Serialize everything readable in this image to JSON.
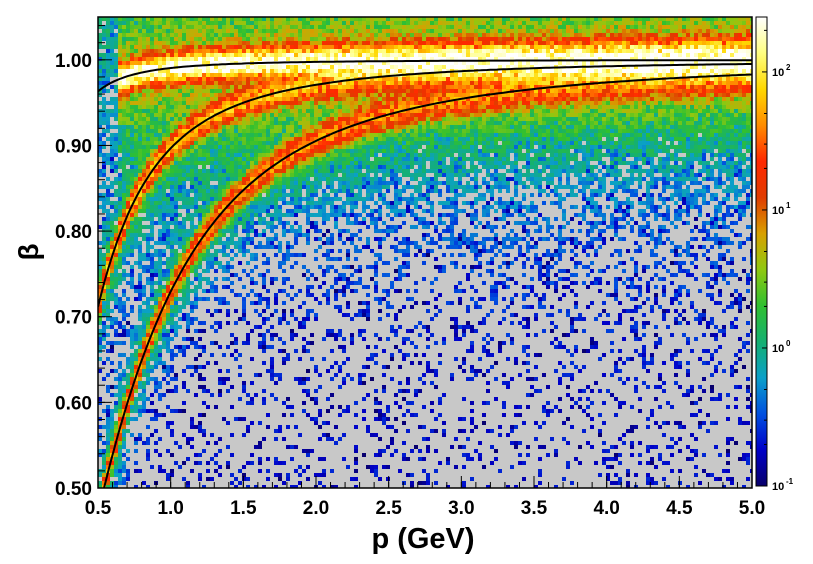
{
  "chart_data": {
    "type": "heatmap",
    "xlabel": "p (GeV)",
    "ylabel": "β",
    "xlim": [
      0.5,
      5.0
    ],
    "ylim": [
      0.5,
      1.05
    ],
    "x_ticks": [
      "0.5",
      "1.0",
      "1.5",
      "2.0",
      "2.5",
      "3.0",
      "3.5",
      "4.0",
      "4.5",
      "5.0"
    ],
    "y_ticks": [
      "0.50",
      "0.60",
      "0.70",
      "0.80",
      "0.90",
      "1.00"
    ],
    "colorbar": {
      "scale": "log",
      "range": [
        0.1,
        250
      ],
      "tick_labels": [
        {
          "base": "10",
          "exp": "-1",
          "value": 0.1
        },
        {
          "base": "10",
          "exp": "0",
          "value": 1
        },
        {
          "base": "10",
          "exp": "1",
          "value": 10
        },
        {
          "base": "10",
          "exp": "2",
          "value": 100
        }
      ]
    },
    "curves": [
      {
        "mass_gev": 0.1396,
        "p_range": [
          0.5,
          5.0
        ]
      },
      {
        "mass_gev": 0.4937,
        "p_range": [
          0.5,
          5.0
        ]
      },
      {
        "mass_gev": 0.9383,
        "p_range": [
          0.5,
          5.0
        ]
      }
    ],
    "bands": [
      {
        "mass_gev": 0.1396,
        "p_start": 0.65,
        "peak_density": 250
      },
      {
        "mass_gev": 0.4937,
        "p_start": 0.5,
        "peak_density": 60
      },
      {
        "mass_gev": 0.9383,
        "p_start": 0.5,
        "peak_density": 40
      }
    ],
    "background_density": 0.5,
    "grid": false
  },
  "colors": {
    "frame_background": "#c8c8c8",
    "curve": "#000000",
    "colormap": [
      "#08006a",
      "#0000c8",
      "#0050e0",
      "#0aa0c8",
      "#15b070",
      "#30c030",
      "#90c810",
      "#d8a000",
      "#e03c00",
      "#ff2800",
      "#ff8c00",
      "#ffd700",
      "#ffff80",
      "#ffffff"
    ]
  }
}
